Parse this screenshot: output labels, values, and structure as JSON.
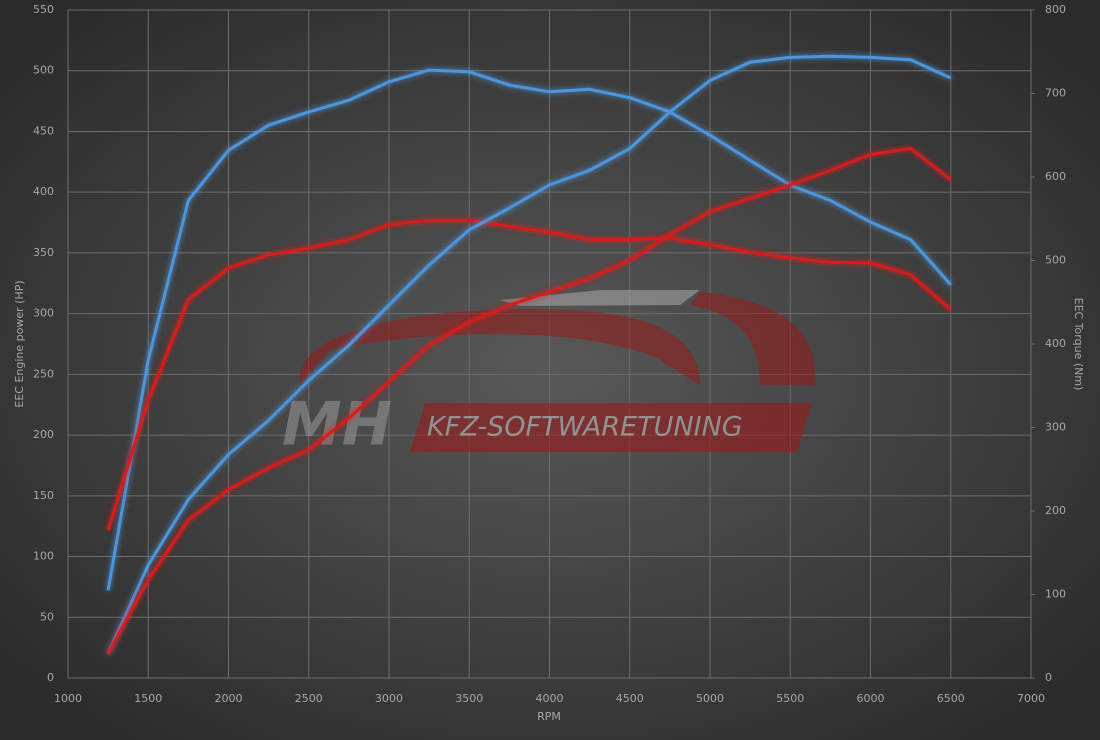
{
  "chart_data": {
    "type": "line",
    "xlabel": "RPM",
    "ylabel": "EEC Engine power (HP)",
    "y2label": "EEC Torque (Nm)",
    "watermark": [
      "MH",
      "KFZ-SOFTWARETUNING"
    ],
    "x": [
      1250,
      1500,
      1750,
      2000,
      2250,
      2500,
      2750,
      3000,
      3250,
      3500,
      3750,
      4000,
      4250,
      4500,
      4750,
      5000,
      5250,
      5500,
      5750,
      6000,
      6250,
      6500
    ],
    "xlim": [
      1000,
      7000
    ],
    "xticks": [
      1000,
      1500,
      2000,
      2500,
      3000,
      3500,
      4000,
      4500,
      5000,
      5500,
      6000,
      6500,
      7000
    ],
    "ylim": [
      0,
      550
    ],
    "yticks": [
      0,
      50,
      100,
      150,
      200,
      250,
      300,
      350,
      400,
      450,
      500,
      550
    ],
    "y2lim": [
      0,
      800
    ],
    "y2ticks": [
      0,
      100,
      200,
      300,
      400,
      500,
      600,
      700,
      800
    ],
    "grid": true,
    "series": [
      {
        "color": "#4d96dc",
        "axis": "y2",
        "values": [
          105,
          381,
          572,
          632,
          662,
          678,
          692,
          714,
          728,
          726,
          710,
          702,
          705,
          695,
          678,
          650,
          620,
          590,
          572,
          546,
          525,
          471
        ]
      },
      {
        "color": "#d81e1e",
        "axis": "y2",
        "values": [
          177,
          333,
          453,
          491,
          507,
          515,
          525,
          543,
          548,
          548,
          541,
          534,
          525,
          525,
          527,
          519,
          510,
          503,
          498,
          497,
          483,
          441
        ]
      },
      {
        "color": "#4d96dc",
        "values": [
          20,
          93,
          147,
          184,
          212,
          245,
          274,
          307,
          340,
          369,
          387,
          406,
          418,
          436,
          466,
          492,
          507,
          511,
          512,
          511,
          509,
          494
        ]
      },
      {
        "color": "#d81e1e",
        "values": [
          20,
          81,
          130,
          155,
          173,
          188,
          214,
          244,
          274,
          293,
          307,
          318,
          329,
          344,
          365,
          384,
          395,
          406,
          418,
          431,
          436,
          410
        ]
      }
    ]
  }
}
